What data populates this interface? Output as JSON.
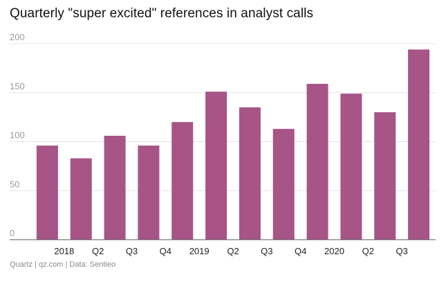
{
  "title": "Quarterly \"super excited\" references in analyst calls",
  "source": "Quartz | qz.com | Data: Sentieo",
  "colors": {
    "bar": "#a65586",
    "grid": "#e4e4e4",
    "axis": "#555555"
  },
  "chart_data": {
    "type": "bar",
    "title": "Quarterly \"super excited\" references in analyst calls",
    "categories": [
      "2018",
      "Q2",
      "Q3",
      "Q4",
      "2019",
      "Q2",
      "Q3",
      "Q4",
      "2020",
      "Q2",
      "Q3",
      ""
    ],
    "values": [
      96,
      83,
      106,
      96,
      120,
      151,
      135,
      113,
      159,
      149,
      130,
      194
    ],
    "ylim": [
      0,
      200
    ],
    "yticks": [
      0,
      50,
      100,
      150,
      200
    ],
    "grid": true,
    "legend": "none",
    "xlabel": "",
    "ylabel": ""
  }
}
